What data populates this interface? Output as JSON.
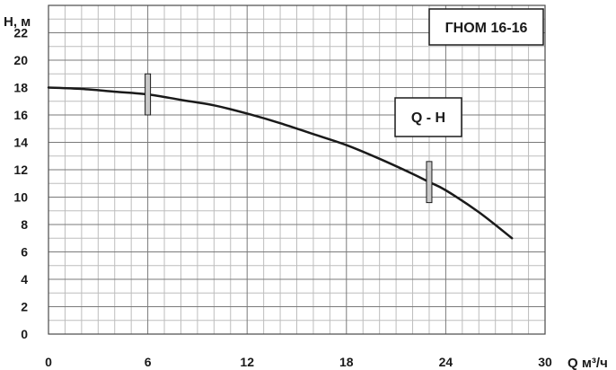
{
  "chart_data": {
    "type": "line",
    "title": "ГНОМ 16-16",
    "xlabel": "Q м³/ч",
    "ylabel": "Н, м",
    "xlim": [
      0,
      30
    ],
    "ylim": [
      0,
      24
    ],
    "x_ticks": [
      0,
      6,
      12,
      18,
      24,
      30
    ],
    "y_ticks": [
      0,
      2,
      4,
      6,
      8,
      10,
      12,
      14,
      16,
      18,
      20,
      22
    ],
    "grid": true,
    "series": [
      {
        "name": "Q - H",
        "x": [
          0,
          2,
          4,
          6,
          8,
          10,
          12,
          14,
          16,
          18,
          20,
          22,
          23,
          24,
          26,
          28
        ],
        "y": [
          18.0,
          17.9,
          17.7,
          17.5,
          17.1,
          16.7,
          16.1,
          15.4,
          14.6,
          13.8,
          12.8,
          11.7,
          11.1,
          10.5,
          8.9,
          7.0
        ]
      }
    ],
    "markers": [
      {
        "x": 6,
        "y_range": [
          16,
          19
        ]
      },
      {
        "x": 23,
        "y_range": [
          9.6,
          12.6
        ]
      }
    ],
    "line_color": "#1a1a1a",
    "marker_fill": "#c8c8c8"
  }
}
